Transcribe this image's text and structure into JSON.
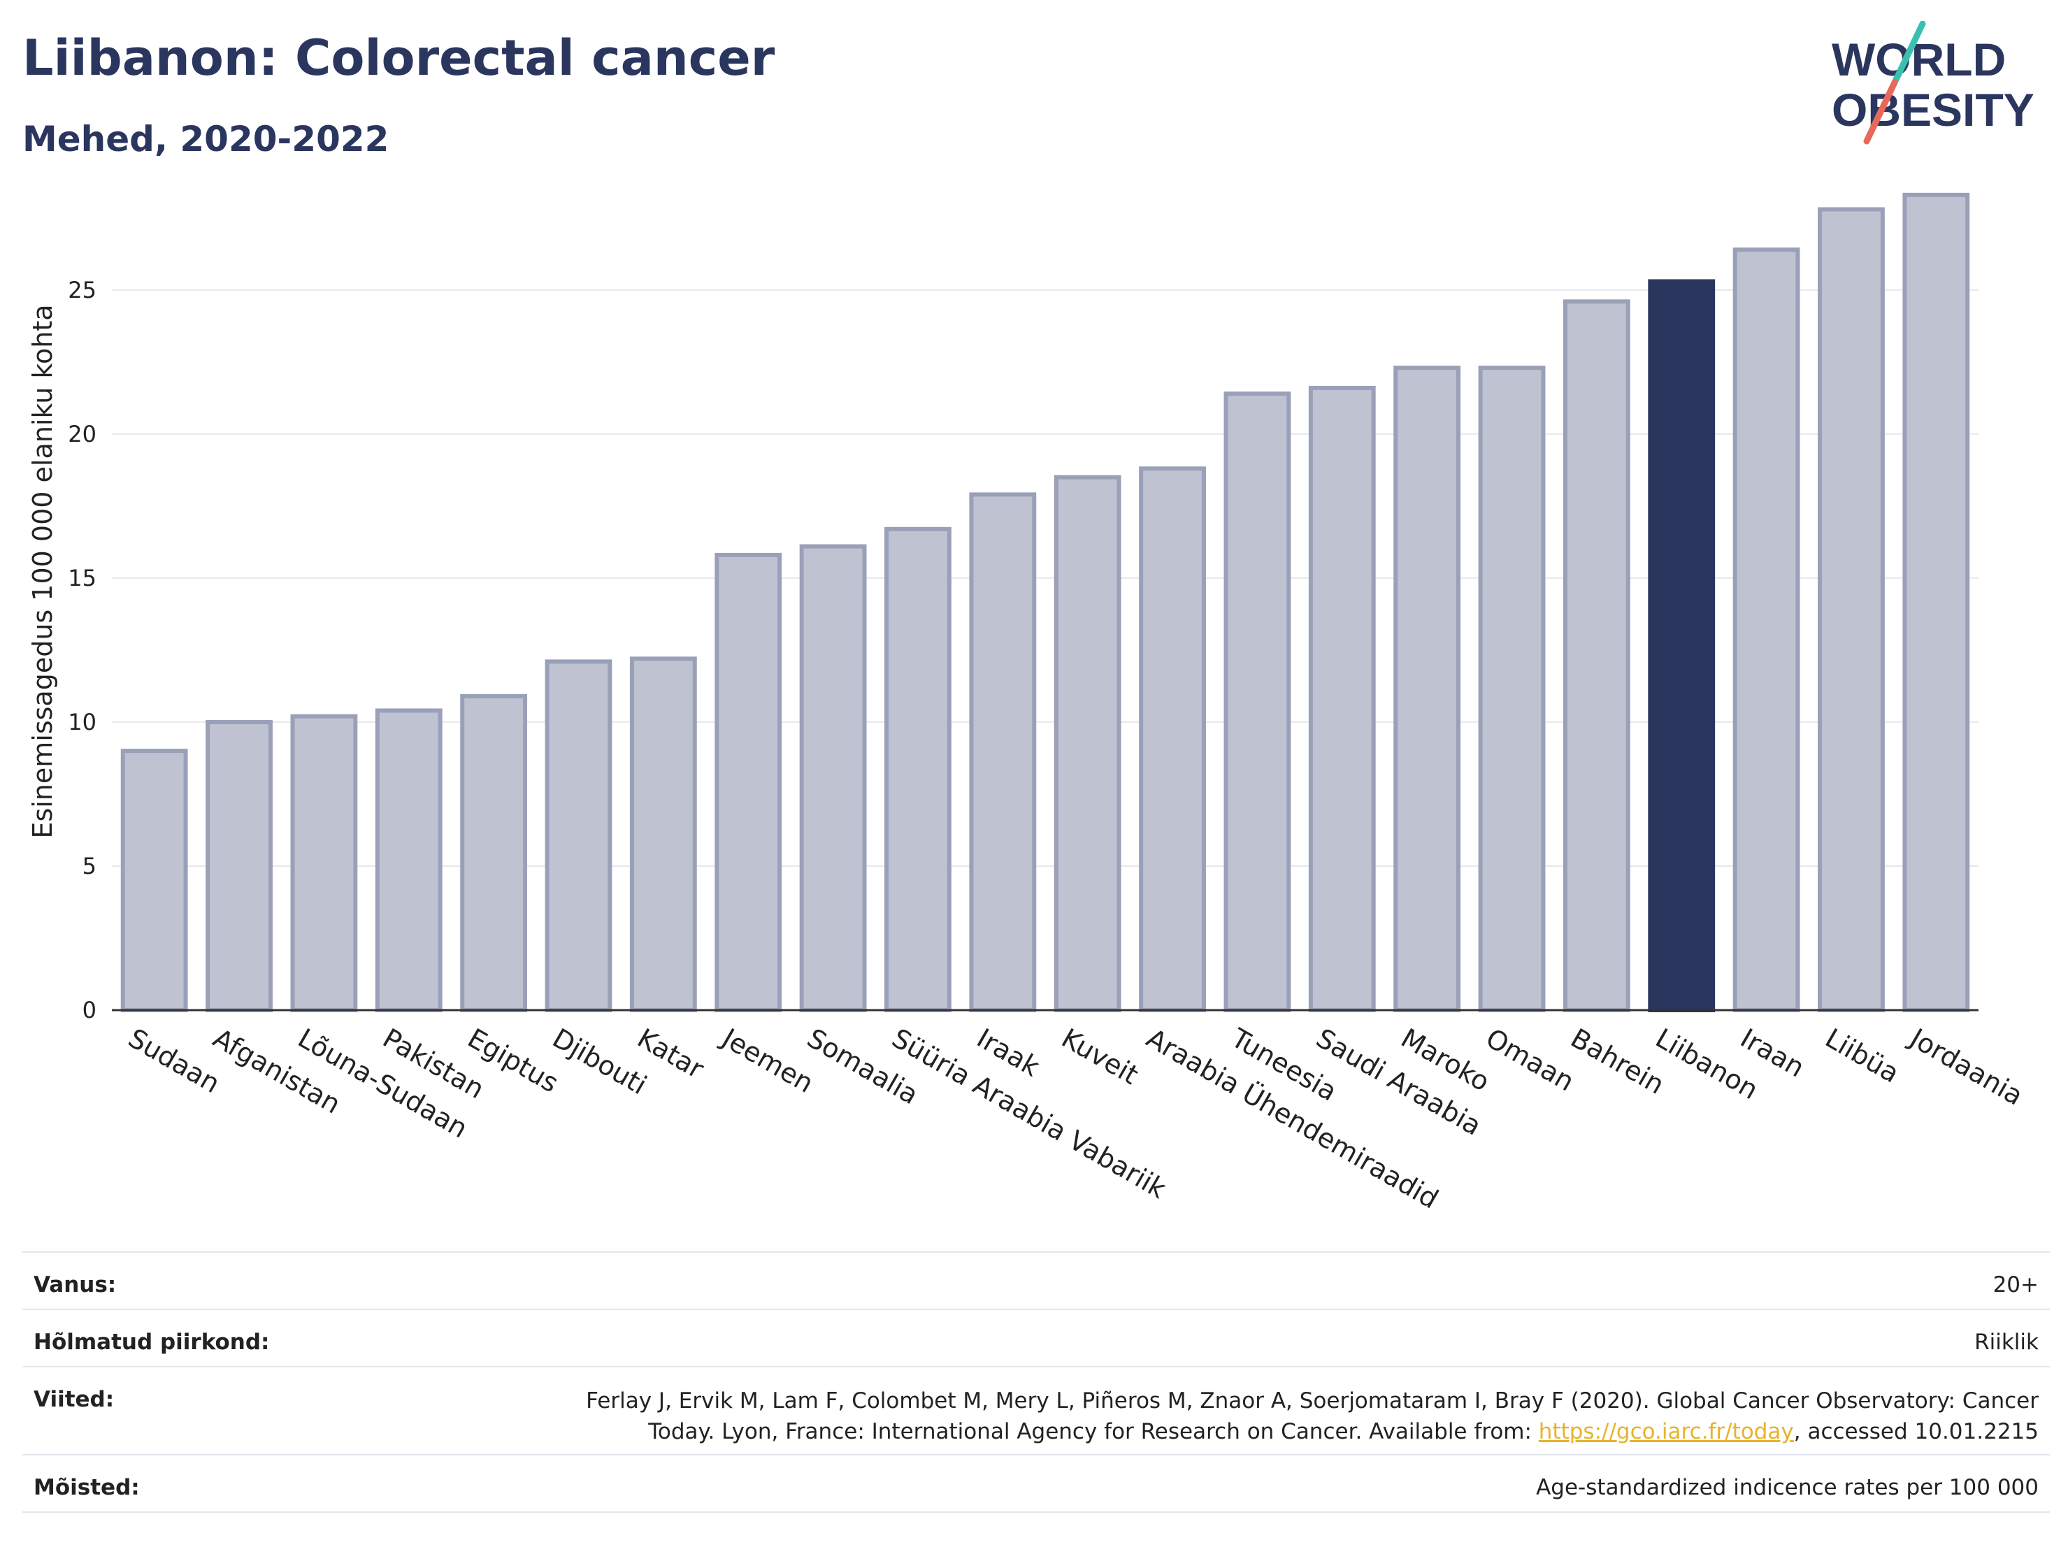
{
  "header": {
    "title": "Liibanon: Colorectal cancer",
    "subtitle": "Mehed, 2020-2022"
  },
  "logo": {
    "line1": "WORLD",
    "line2": "OBESITY",
    "accent_teal": "#3bbfb0",
    "accent_red": "#e8685a",
    "color": "#2b365f"
  },
  "chart_data": {
    "type": "bar",
    "ylabel": "Esinemissagedus 100 000 elaniku kohta",
    "xlabel": "",
    "ylim": [
      0,
      29
    ],
    "yticks": [
      0,
      5,
      10,
      15,
      20,
      25
    ],
    "grid": true,
    "highlight": "Liibanon",
    "colors": {
      "bar": "#bfc2d0",
      "bar_edge": "#9aa0b8",
      "highlight": "#2b365f",
      "grid": "#e6e8ee"
    },
    "categories": [
      "Sudaan",
      "Afganistan",
      "Lõuna-Sudaan",
      "Pakistan",
      "Egiptus",
      "Djibouti",
      "Katar",
      "Jeemen",
      "Somaalia",
      "Süüria Araabia Vabariik",
      "Iraak",
      "Kuveit",
      "Araabia Ühendemiraadid",
      "Tuneesia",
      "Saudi Araabia",
      "Maroko",
      "Omaan",
      "Bahrein",
      "Liibanon",
      "Iraan",
      "Liibüa",
      "Jordaania"
    ],
    "values": [
      9.0,
      10.0,
      10.2,
      10.4,
      10.9,
      12.1,
      12.2,
      15.8,
      16.1,
      16.7,
      17.9,
      18.5,
      18.8,
      21.4,
      21.6,
      22.3,
      22.3,
      24.6,
      25.3,
      26.4,
      27.8,
      28.3
    ]
  },
  "meta": {
    "age_label": "Vanus:",
    "age_value": "20+",
    "region_label": "Hõlmatud piirkond:",
    "region_value": "Riiklik",
    "refs_label": "Viited:",
    "refs_line1": "Ferlay J, Ervik M, Lam F, Colombet M, Mery L, Piñeros M, Znaor A, Soerjomataram I, Bray F (2020). Global Cancer Observatory: Cancer",
    "refs_line2_pre": "Today. Lyon, France: International Agency for Research on Cancer. Available from: ",
    "refs_link": "https://gco.iarc.fr/today",
    "refs_line2_post": ", accessed 10.01.2215",
    "def_label": "Mõisted:",
    "def_value": "Age-standardized indicence rates per 100 000"
  }
}
